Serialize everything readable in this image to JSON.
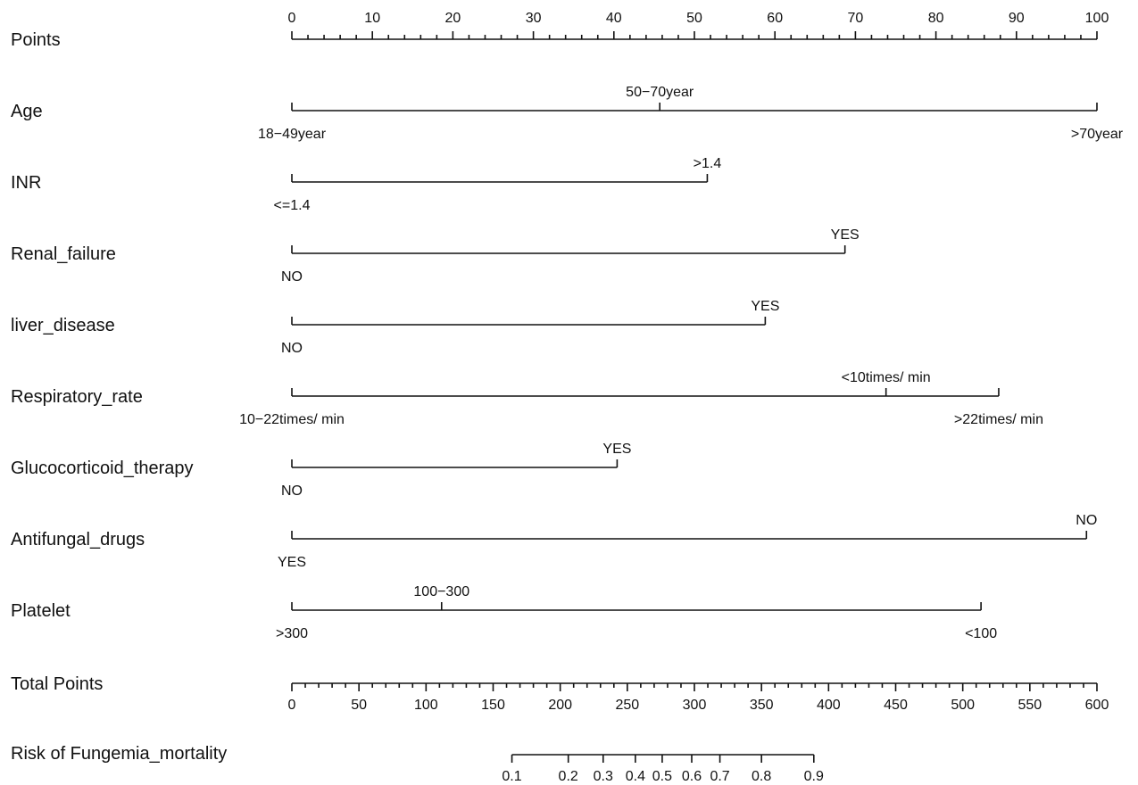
{
  "chart_data": {
    "type": "nomogram",
    "points_scale": {
      "label": "Points",
      "min": 0,
      "max": 100,
      "major_ticks": [
        0,
        10,
        20,
        30,
        40,
        50,
        60,
        70,
        80,
        90,
        100
      ],
      "tick_labels": [
        "0",
        "10",
        "20",
        "30",
        "40",
        "50",
        "60",
        "70",
        "80",
        "90",
        "100"
      ],
      "minor_step": 2
    },
    "variables": [
      {
        "label": "Age",
        "levels": [
          {
            "name": "18−49year",
            "points": 0,
            "label_side": "below"
          },
          {
            "name": "50−70year",
            "points": 45.7,
            "label_side": "above"
          },
          {
            "name": ">70year",
            "points": 100,
            "label_side": "below"
          }
        ]
      },
      {
        "label": "INR",
        "levels": [
          {
            "name": "<=1.4",
            "points": 0,
            "label_side": "below"
          },
          {
            "name": ">1.4",
            "points": 51.6,
            "label_side": "above"
          }
        ]
      },
      {
        "label": "Renal_failure",
        "levels": [
          {
            "name": "NO",
            "points": 0,
            "label_side": "below"
          },
          {
            "name": "YES",
            "points": 68.7,
            "label_side": "above"
          }
        ]
      },
      {
        "label": "liver_disease",
        "levels": [
          {
            "name": "NO",
            "points": 0,
            "label_side": "below"
          },
          {
            "name": "YES",
            "points": 58.8,
            "label_side": "above"
          }
        ]
      },
      {
        "label": "Respiratory_rate",
        "levels": [
          {
            "name": "10−22times/ min",
            "points": 0,
            "label_side": "below"
          },
          {
            "name": "<10times/ min",
            "points": 73.8,
            "label_side": "above"
          },
          {
            "name": ">22times/ min",
            "points": 87.8,
            "label_side": "below"
          }
        ]
      },
      {
        "label": "Glucocorticoid_therapy",
        "levels": [
          {
            "name": "NO",
            "points": 0,
            "label_side": "below"
          },
          {
            "name": "YES",
            "points": 40.4,
            "label_side": "above"
          }
        ]
      },
      {
        "label": "Antifungal_drugs",
        "levels": [
          {
            "name": "YES",
            "points": 0,
            "label_side": "below"
          },
          {
            "name": "NO",
            "points": 98.7,
            "label_side": "above"
          }
        ]
      },
      {
        "label": "Platelet",
        "levels": [
          {
            "name": ">300",
            "points": 0,
            "label_side": "below"
          },
          {
            "name": "100−300",
            "points": 18.6,
            "label_side": "above"
          },
          {
            "name": "<100",
            "points": 85.6,
            "label_side": "below"
          }
        ]
      }
    ],
    "total_points_scale": {
      "label": "Total Points",
      "min": 0,
      "max": 600,
      "major_ticks": [
        0,
        50,
        100,
        150,
        200,
        250,
        300,
        350,
        400,
        450,
        500,
        550,
        600
      ],
      "tick_labels": [
        "0",
        "50",
        "100",
        "150",
        "200",
        "250",
        "300",
        "350",
        "400",
        "450",
        "500",
        "550",
        "600"
      ],
      "minor_step": 10
    },
    "risk_scale": {
      "label": "Risk of Fungemia_mortality",
      "ticks": [
        {
          "value": 0.1,
          "label": "0.1",
          "total_points": 164
        },
        {
          "value": 0.2,
          "label": "0.2",
          "total_points": 206
        },
        {
          "value": 0.3,
          "label": "0.3",
          "total_points": 232
        },
        {
          "value": 0.4,
          "label": "0.4",
          "total_points": 256
        },
        {
          "value": 0.5,
          "label": "0.5",
          "total_points": 276
        },
        {
          "value": 0.6,
          "label": "0.6",
          "total_points": 298
        },
        {
          "value": 0.7,
          "label": "0.7",
          "total_points": 319
        },
        {
          "value": 0.8,
          "label": "0.8",
          "total_points": 350
        },
        {
          "value": 0.9,
          "label": "0.9",
          "total_points": 389
        }
      ]
    }
  }
}
